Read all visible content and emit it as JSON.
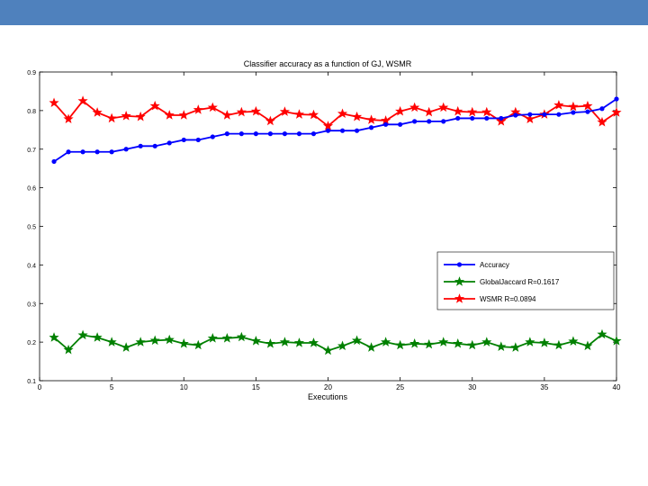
{
  "slide": {
    "bar_color": "#4f81bd"
  },
  "chart_data": {
    "type": "line",
    "title": "Classifier accuracy as a function of GJ, WSMR",
    "xlabel": "Executions",
    "ylabel": "",
    "xlim": [
      0,
      40
    ],
    "ylim": [
      0.1,
      0.9
    ],
    "x_ticks": [
      0,
      5,
      10,
      15,
      20,
      25,
      30,
      35,
      40
    ],
    "y_ticks": [
      0.1,
      0.2,
      0.3,
      0.4,
      0.5,
      0.6,
      0.7,
      0.8,
      0.9
    ],
    "grid": false,
    "legend_position": "lower-right",
    "x": [
      1,
      2,
      3,
      4,
      5,
      6,
      7,
      8,
      9,
      10,
      11,
      12,
      13,
      14,
      15,
      16,
      17,
      18,
      19,
      20,
      21,
      22,
      23,
      24,
      25,
      26,
      27,
      28,
      29,
      30,
      31,
      32,
      33,
      34,
      35,
      36,
      37,
      38,
      39,
      40
    ],
    "series": [
      {
        "name": "Accuracy",
        "color": "#0000ff",
        "marker": "dot",
        "values": [
          0.668,
          0.693,
          0.693,
          0.693,
          0.693,
          0.7,
          0.708,
          0.708,
          0.716,
          0.724,
          0.724,
          0.732,
          0.74,
          0.74,
          0.74,
          0.74,
          0.74,
          0.74,
          0.74,
          0.748,
          0.748,
          0.748,
          0.756,
          0.764,
          0.764,
          0.772,
          0.772,
          0.772,
          0.78,
          0.78,
          0.78,
          0.78,
          0.788,
          0.79,
          0.79,
          0.79,
          0.795,
          0.797,
          0.805,
          0.83
        ]
      },
      {
        "name": "GlobalJaccard R=0.1617",
        "color": "#008000",
        "marker": "star",
        "values": [
          0.212,
          0.18,
          0.218,
          0.212,
          0.2,
          0.186,
          0.2,
          0.204,
          0.206,
          0.196,
          0.192,
          0.21,
          0.21,
          0.213,
          0.203,
          0.196,
          0.2,
          0.198,
          0.198,
          0.178,
          0.19,
          0.204,
          0.186,
          0.2,
          0.192,
          0.196,
          0.194,
          0.2,
          0.196,
          0.192,
          0.2,
          0.188,
          0.186,
          0.2,
          0.198,
          0.192,
          0.202,
          0.19,
          0.22,
          0.203
        ]
      },
      {
        "name": "WSMR R=0.0894",
        "color": "#ff0000",
        "marker": "star",
        "values": [
          0.82,
          0.778,
          0.825,
          0.795,
          0.78,
          0.786,
          0.784,
          0.812,
          0.788,
          0.788,
          0.802,
          0.808,
          0.788,
          0.796,
          0.798,
          0.773,
          0.797,
          0.79,
          0.789,
          0.76,
          0.792,
          0.784,
          0.776,
          0.774,
          0.798,
          0.808,
          0.796,
          0.808,
          0.798,
          0.796,
          0.796,
          0.772,
          0.796,
          0.778,
          0.79,
          0.814,
          0.81,
          0.812,
          0.77,
          0.795
        ]
      }
    ]
  }
}
